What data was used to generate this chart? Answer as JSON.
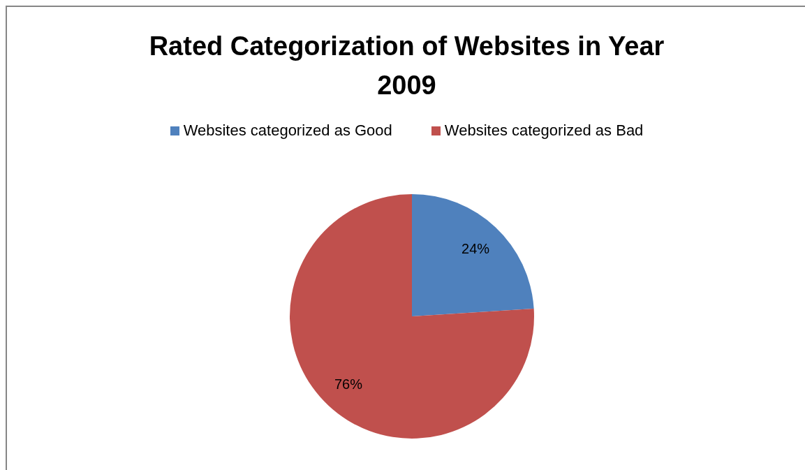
{
  "chart_data": {
    "type": "pie",
    "title": "Rated Categorization of Websites in Year 2009",
    "categories": [
      "Websites categorized as Good",
      "Websites categorized as Bad"
    ],
    "values": [
      24,
      76
    ],
    "colors": [
      "#4f81bd",
      "#c0504d"
    ],
    "value_labels": [
      "24%",
      "76%"
    ],
    "legend": "top"
  }
}
